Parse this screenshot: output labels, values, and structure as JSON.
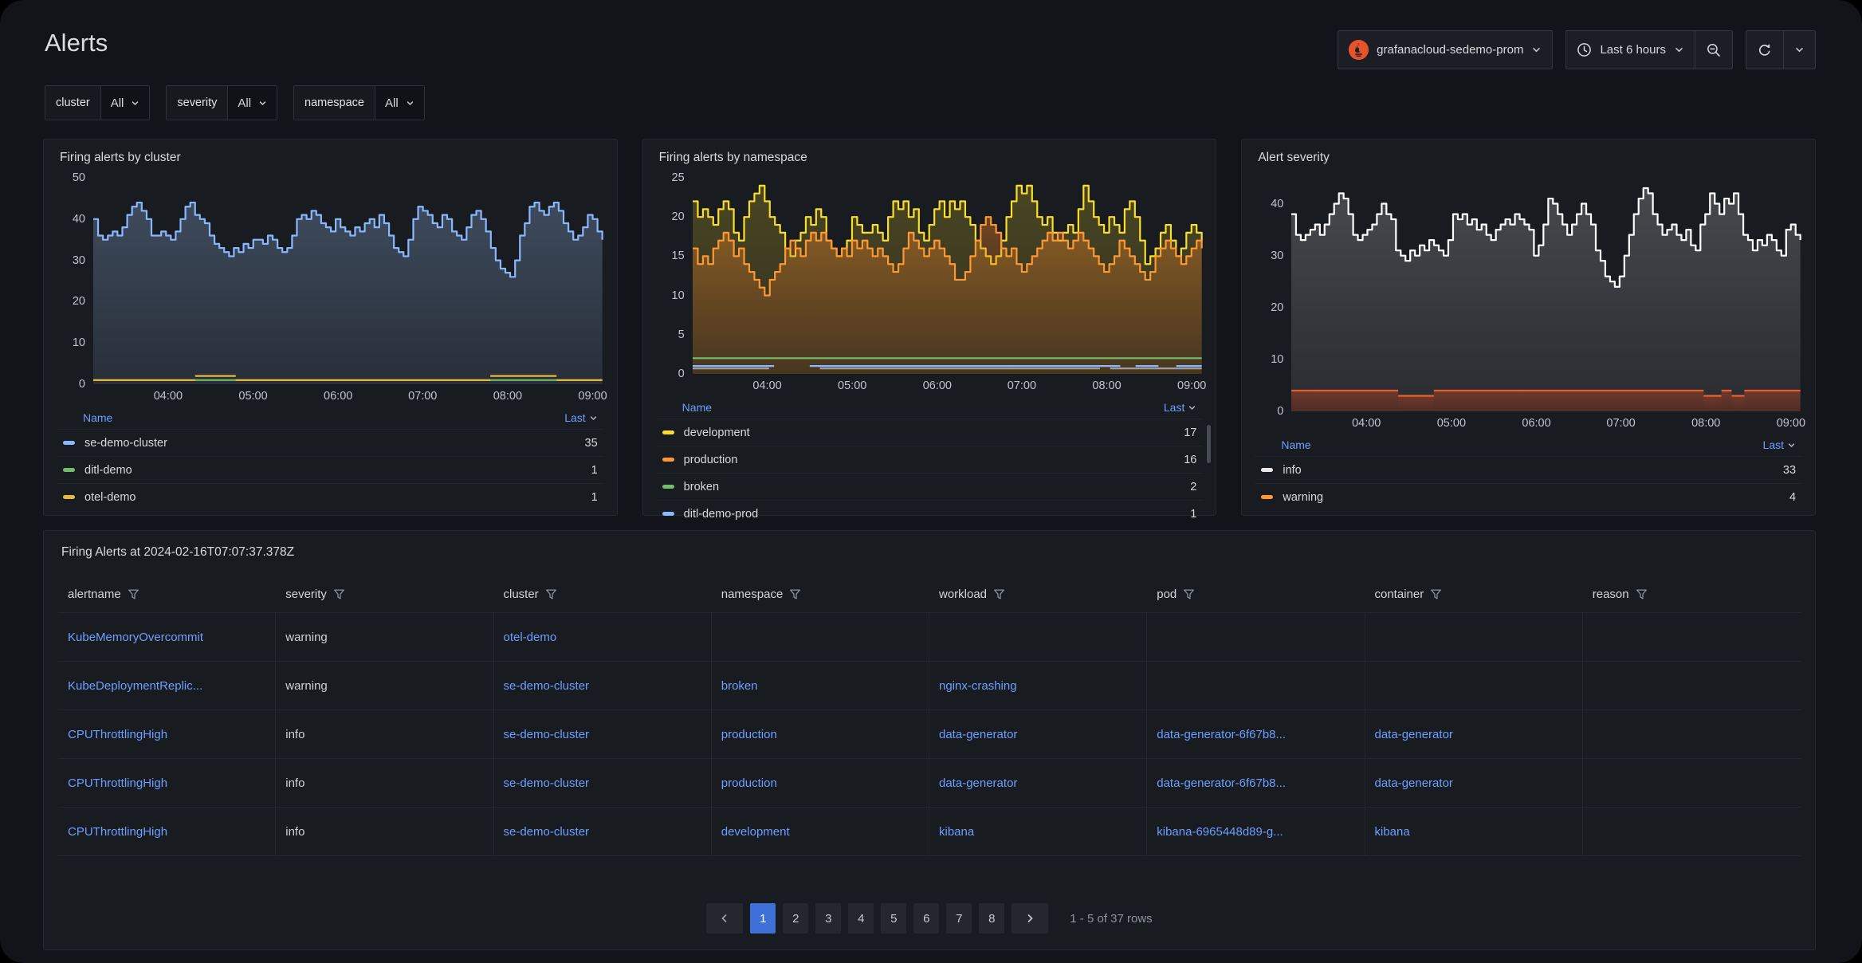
{
  "page": {
    "title": "Alerts"
  },
  "toolbar": {
    "datasource": {
      "label": "grafanacloud-sedemo-prom",
      "icon": "prometheus-icon",
      "brand_color": "#E6522C"
    },
    "time_range": {
      "label": "Last 6 hours",
      "icon": "clock-icon"
    },
    "zoom_out_icon": "magnifier-minus-icon",
    "refresh_icon": "refresh-icon"
  },
  "filters": [
    {
      "label": "cluster",
      "value": "All"
    },
    {
      "label": "severity",
      "value": "All"
    },
    {
      "label": "namespace",
      "value": "All"
    }
  ],
  "chart_data": [
    {
      "type": "area",
      "title": "Firing alerts by cluster",
      "ylim": [
        0,
        50
      ],
      "yticks": [
        0,
        10,
        20,
        30,
        40,
        50
      ],
      "ymax": 50,
      "xticks": [
        {
          "label": "04:00",
          "pct": 14.7
        },
        {
          "label": "05:00",
          "pct": 31.4
        },
        {
          "label": "06:00",
          "pct": 48.1
        },
        {
          "label": "07:00",
          "pct": 64.7
        },
        {
          "label": "08:00",
          "pct": 81.4
        },
        {
          "label": "09:00",
          "pct": 98.1
        }
      ],
      "series": [
        {
          "name": "se-demo-cluster",
          "color": "#8AB8FF",
          "fill_top": "rgba(150,185,230,0.30)",
          "fill_bottom": "rgba(150,185,230,0.12)",
          "values": [
            40,
            36,
            35,
            36,
            37,
            36,
            38,
            41,
            43,
            44,
            42,
            40,
            36,
            36,
            37,
            36,
            35,
            37,
            40,
            43,
            44,
            41,
            40,
            39,
            36,
            34,
            33,
            32,
            31,
            33,
            32,
            34,
            33,
            35,
            35,
            34,
            36,
            35,
            33,
            32,
            33,
            36,
            40,
            41,
            40,
            42,
            41,
            39,
            38,
            37,
            40,
            38,
            37,
            36,
            38,
            37,
            39,
            40,
            38,
            41,
            39,
            36,
            33,
            32,
            31,
            35,
            40,
            43,
            42,
            41,
            39,
            38,
            41,
            40,
            37,
            36,
            35,
            38,
            41,
            42,
            40,
            37,
            33,
            30,
            28,
            27,
            26,
            30,
            36,
            39,
            43,
            44,
            42,
            41,
            43,
            44,
            42,
            39,
            37,
            35,
            36,
            38,
            41,
            40,
            37,
            35
          ]
        },
        {
          "name": "ditl-demo",
          "color": "#73BF69",
          "segments": [
            {
              "from": 0,
              "to": 100,
              "value": 1
            }
          ]
        },
        {
          "name": "otel-demo",
          "color": "#EAB839",
          "segments": [
            {
              "from": 0,
              "to": 20,
              "value": 1
            },
            {
              "from": 20,
              "to": 28,
              "value": 2
            },
            {
              "from": 28,
              "to": 78,
              "value": 1
            },
            {
              "from": 78,
              "to": 91,
              "value": 2
            },
            {
              "from": 91,
              "to": 100,
              "value": 1
            }
          ]
        }
      ],
      "legend": {
        "name_header": "Name",
        "last_header": "Last",
        "rows": [
          {
            "name": "se-demo-cluster",
            "color": "#8AB8FF",
            "value": "35"
          },
          {
            "name": "ditl-demo",
            "color": "#73BF69",
            "value": "1"
          },
          {
            "name": "otel-demo",
            "color": "#EAB839",
            "value": "1"
          }
        ],
        "clipped": false
      }
    },
    {
      "type": "area",
      "title": "Firing alerts by namespace",
      "ylim": [
        0,
        25
      ],
      "yticks": [
        0,
        5,
        10,
        15,
        20,
        25
      ],
      "ymax": 25,
      "xticks": [
        {
          "label": "04:00",
          "pct": 14.7
        },
        {
          "label": "05:00",
          "pct": 31.4
        },
        {
          "label": "06:00",
          "pct": 48.1
        },
        {
          "label": "07:00",
          "pct": 64.7
        },
        {
          "label": "08:00",
          "pct": 81.4
        },
        {
          "label": "09:00",
          "pct": 98.1
        }
      ],
      "series": [
        {
          "name": "development",
          "color": "#FADE2A",
          "fill_top": "rgba(250,222,42,0.22)",
          "fill_bottom": "rgba(250,222,42,0.10)",
          "values": [
            22,
            20,
            21,
            20,
            19,
            21,
            22,
            21,
            18,
            17,
            20,
            22,
            23,
            24,
            22,
            20,
            19,
            18,
            16,
            15,
            17,
            18,
            20,
            19,
            21,
            20,
            17,
            16,
            15,
            16,
            17,
            20,
            19,
            18,
            18,
            19,
            18,
            17,
            20,
            22,
            21,
            22,
            20,
            21,
            18,
            17,
            19,
            21,
            22,
            20,
            22,
            21,
            22,
            20,
            19,
            17,
            16,
            15,
            14,
            15,
            17,
            20,
            22,
            24,
            23,
            24,
            22,
            20,
            19,
            20,
            18,
            17,
            18,
            19,
            18,
            21,
            24,
            22,
            20,
            19,
            18,
            20,
            19,
            18,
            21,
            22,
            20,
            17,
            14,
            15,
            16,
            18,
            19,
            17,
            15,
            16,
            18,
            19,
            18,
            17
          ]
        },
        {
          "name": "production",
          "color": "#FF9830",
          "fill_top": "rgba(255,140,40,0.38)",
          "fill_bottom": "rgba(160,80,30,0.22)",
          "values": [
            16,
            14,
            15,
            14,
            16,
            17,
            18,
            17,
            15,
            16,
            14,
            13,
            12,
            11,
            10,
            12,
            13,
            14,
            16,
            17,
            16,
            15,
            17,
            18,
            17,
            18,
            17,
            16,
            15,
            16,
            15,
            17,
            16,
            17,
            16,
            15,
            16,
            15,
            14,
            13,
            14,
            16,
            18,
            17,
            16,
            15,
            16,
            17,
            16,
            15,
            14,
            12,
            12,
            13,
            15,
            17,
            19,
            20,
            19,
            18,
            16,
            15,
            16,
            14,
            13,
            14,
            15,
            16,
            17,
            18,
            17,
            18,
            17,
            16,
            17,
            18,
            17,
            16,
            15,
            14,
            13,
            14,
            15,
            17,
            16,
            15,
            14,
            13,
            12,
            13,
            15,
            16,
            17,
            16,
            15,
            14,
            15,
            16,
            17,
            16
          ]
        },
        {
          "name": "broken",
          "color": "#73BF69",
          "segments": [
            {
              "from": 0,
              "to": 100,
              "value": 2
            }
          ]
        },
        {
          "name": "ditl-demo-prod",
          "color": "#8AB8FF",
          "segments": [
            {
              "from": 0,
              "to": 16,
              "value": 1
            },
            {
              "from": 23,
              "to": 84,
              "value": 1
            },
            {
              "from": 87,
              "to": 91.5,
              "value": 1
            },
            {
              "from": 95,
              "to": 100,
              "value": 1
            }
          ]
        },
        {
          "name": "",
          "color": "#9AA0A6",
          "segments": [
            {
              "from": 0,
              "to": 15,
              "value": 0.7
            },
            {
              "from": 25,
              "to": 80,
              "value": 0.7
            },
            {
              "from": 82,
              "to": 100,
              "value": 0.7
            }
          ]
        }
      ],
      "legend": {
        "name_header": "Name",
        "last_header": "Last",
        "rows": [
          {
            "name": "development",
            "color": "#FADE2A",
            "value": "17"
          },
          {
            "name": "production",
            "color": "#FF9830",
            "value": "16"
          },
          {
            "name": "broken",
            "color": "#73BF69",
            "value": "2"
          },
          {
            "name": "ditl-demo-prod",
            "color": "#8AB8FF",
            "value": "1"
          }
        ],
        "clipped": true
      }
    },
    {
      "type": "area",
      "title": "Alert severity",
      "ylim": [
        0,
        45
      ],
      "yticks": [
        0,
        10,
        20,
        30,
        40
      ],
      "ymax": 45,
      "xticks": [
        {
          "label": "04:00",
          "pct": 14.7
        },
        {
          "label": "05:00",
          "pct": 31.4
        },
        {
          "label": "06:00",
          "pct": 48.1
        },
        {
          "label": "07:00",
          "pct": 64.7
        },
        {
          "label": "08:00",
          "pct": 81.4
        },
        {
          "label": "09:00",
          "pct": 98.1
        }
      ],
      "series": [
        {
          "name": "info",
          "color": "#FFFFFF",
          "fill_top": "rgba(255,255,255,0.20)",
          "fill_bottom": "rgba(255,255,255,0.07)",
          "values": [
            38,
            34,
            33,
            34,
            35,
            36,
            34,
            36,
            38,
            40,
            42,
            41,
            38,
            34,
            33,
            34,
            35,
            36,
            38,
            40,
            38,
            37,
            31,
            30,
            29,
            31,
            30,
            32,
            31,
            33,
            32,
            31,
            30,
            33,
            38,
            37,
            38,
            36,
            37,
            35,
            36,
            34,
            33,
            35,
            36,
            37,
            36,
            38,
            37,
            36,
            35,
            30,
            32,
            36,
            41,
            40,
            38,
            36,
            34,
            36,
            38,
            40,
            38,
            36,
            31,
            29,
            26,
            25,
            24,
            26,
            30,
            34,
            38,
            41,
            43,
            42,
            38,
            36,
            34,
            35,
            36,
            34,
            33,
            35,
            32,
            31,
            36,
            38,
            42,
            40,
            38,
            41,
            40,
            42,
            38,
            34,
            33,
            31,
            33,
            32,
            34,
            33,
            31,
            30,
            35,
            36,
            34,
            33
          ]
        },
        {
          "name": "warning",
          "color": "#E8602C",
          "fill_top": "rgba(200,70,35,0.45)",
          "fill_bottom": "rgba(150,50,25,0.35)",
          "segments": [
            {
              "from": 0,
              "to": 21,
              "value": 4
            },
            {
              "from": 21,
              "to": 28,
              "value": 3
            },
            {
              "from": 28,
              "to": 81,
              "value": 4
            },
            {
              "from": 81,
              "to": 84.5,
              "value": 3
            },
            {
              "from": 84.5,
              "to": 86.5,
              "value": 4
            },
            {
              "from": 86.5,
              "to": 89,
              "value": 3
            },
            {
              "from": 89,
              "to": 100,
              "value": 4
            }
          ]
        }
      ],
      "legend": {
        "name_header": "Name",
        "last_header": "Last",
        "rows": [
          {
            "name": "info",
            "color": "#E8E8E8",
            "value": "33"
          },
          {
            "name": "warning",
            "color": "#FF9830",
            "value": "4"
          }
        ],
        "clipped": false
      }
    }
  ],
  "table_panel": {
    "title": "Firing Alerts at 2024-02-16T07:07:37.378Z",
    "columns": [
      {
        "label": "alertname",
        "link": true
      },
      {
        "label": "severity",
        "link": false
      },
      {
        "label": "cluster",
        "link": true
      },
      {
        "label": "namespace",
        "link": true
      },
      {
        "label": "workload",
        "link": true
      },
      {
        "label": "pod",
        "link": true
      },
      {
        "label": "container",
        "link": true
      },
      {
        "label": "reason",
        "link": false
      }
    ],
    "rows": [
      [
        "KubeMemoryOvercommit",
        "warning",
        "otel-demo",
        "",
        "",
        "",
        "",
        ""
      ],
      [
        "KubeDeploymentReplic...",
        "warning",
        "se-demo-cluster",
        "broken",
        "nginx-crashing",
        "",
        "",
        ""
      ],
      [
        "CPUThrottlingHigh",
        "info",
        "se-demo-cluster",
        "production",
        "data-generator",
        "data-generator-6f67b8...",
        "data-generator",
        ""
      ],
      [
        "CPUThrottlingHigh",
        "info",
        "se-demo-cluster",
        "production",
        "data-generator",
        "data-generator-6f67b8...",
        "data-generator",
        ""
      ],
      [
        "CPUThrottlingHigh",
        "info",
        "se-demo-cluster",
        "development",
        "kibana",
        "kibana-6965448d89-g...",
        "kibana",
        ""
      ]
    ],
    "pagination": {
      "pages": [
        "1",
        "2",
        "3",
        "4",
        "5",
        "6",
        "7",
        "8"
      ],
      "active": "1",
      "summary": "1 - 5 of 37 rows"
    }
  },
  "colors": {
    "accent_blue": "#3D71D9",
    "link_blue": "#6E9FFF",
    "prometheus_orange": "#E6522C"
  }
}
